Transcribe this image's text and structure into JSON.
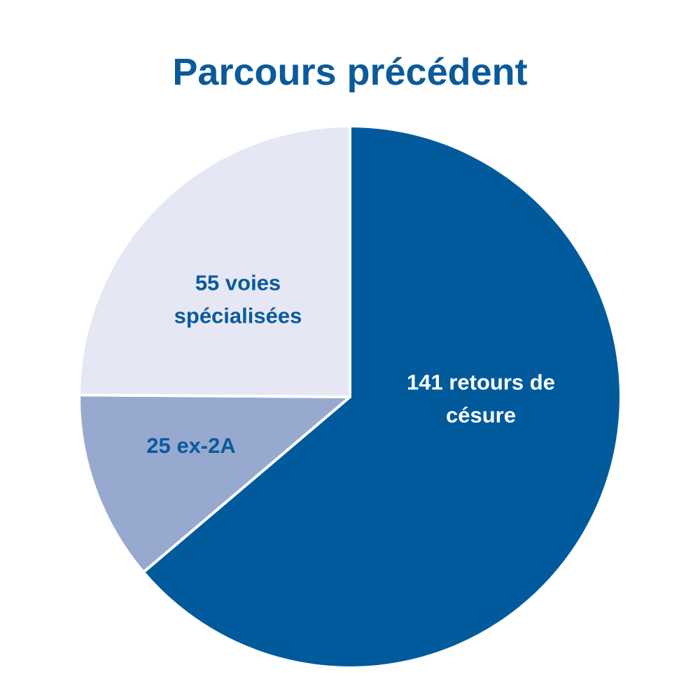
{
  "chart_data": {
    "type": "pie",
    "title": "Parcours précédent",
    "values": [
      141,
      25,
      55
    ],
    "value_labels": [
      "141 retours de césure",
      "25 ex-2A",
      "55 voies spécialisées"
    ],
    "colors": [
      "#005a9c",
      "#97a9cf",
      "#e6e7f4"
    ],
    "label_colors": [
      "#ffffff",
      "#0a5a9c",
      "#0a5a9c"
    ]
  }
}
